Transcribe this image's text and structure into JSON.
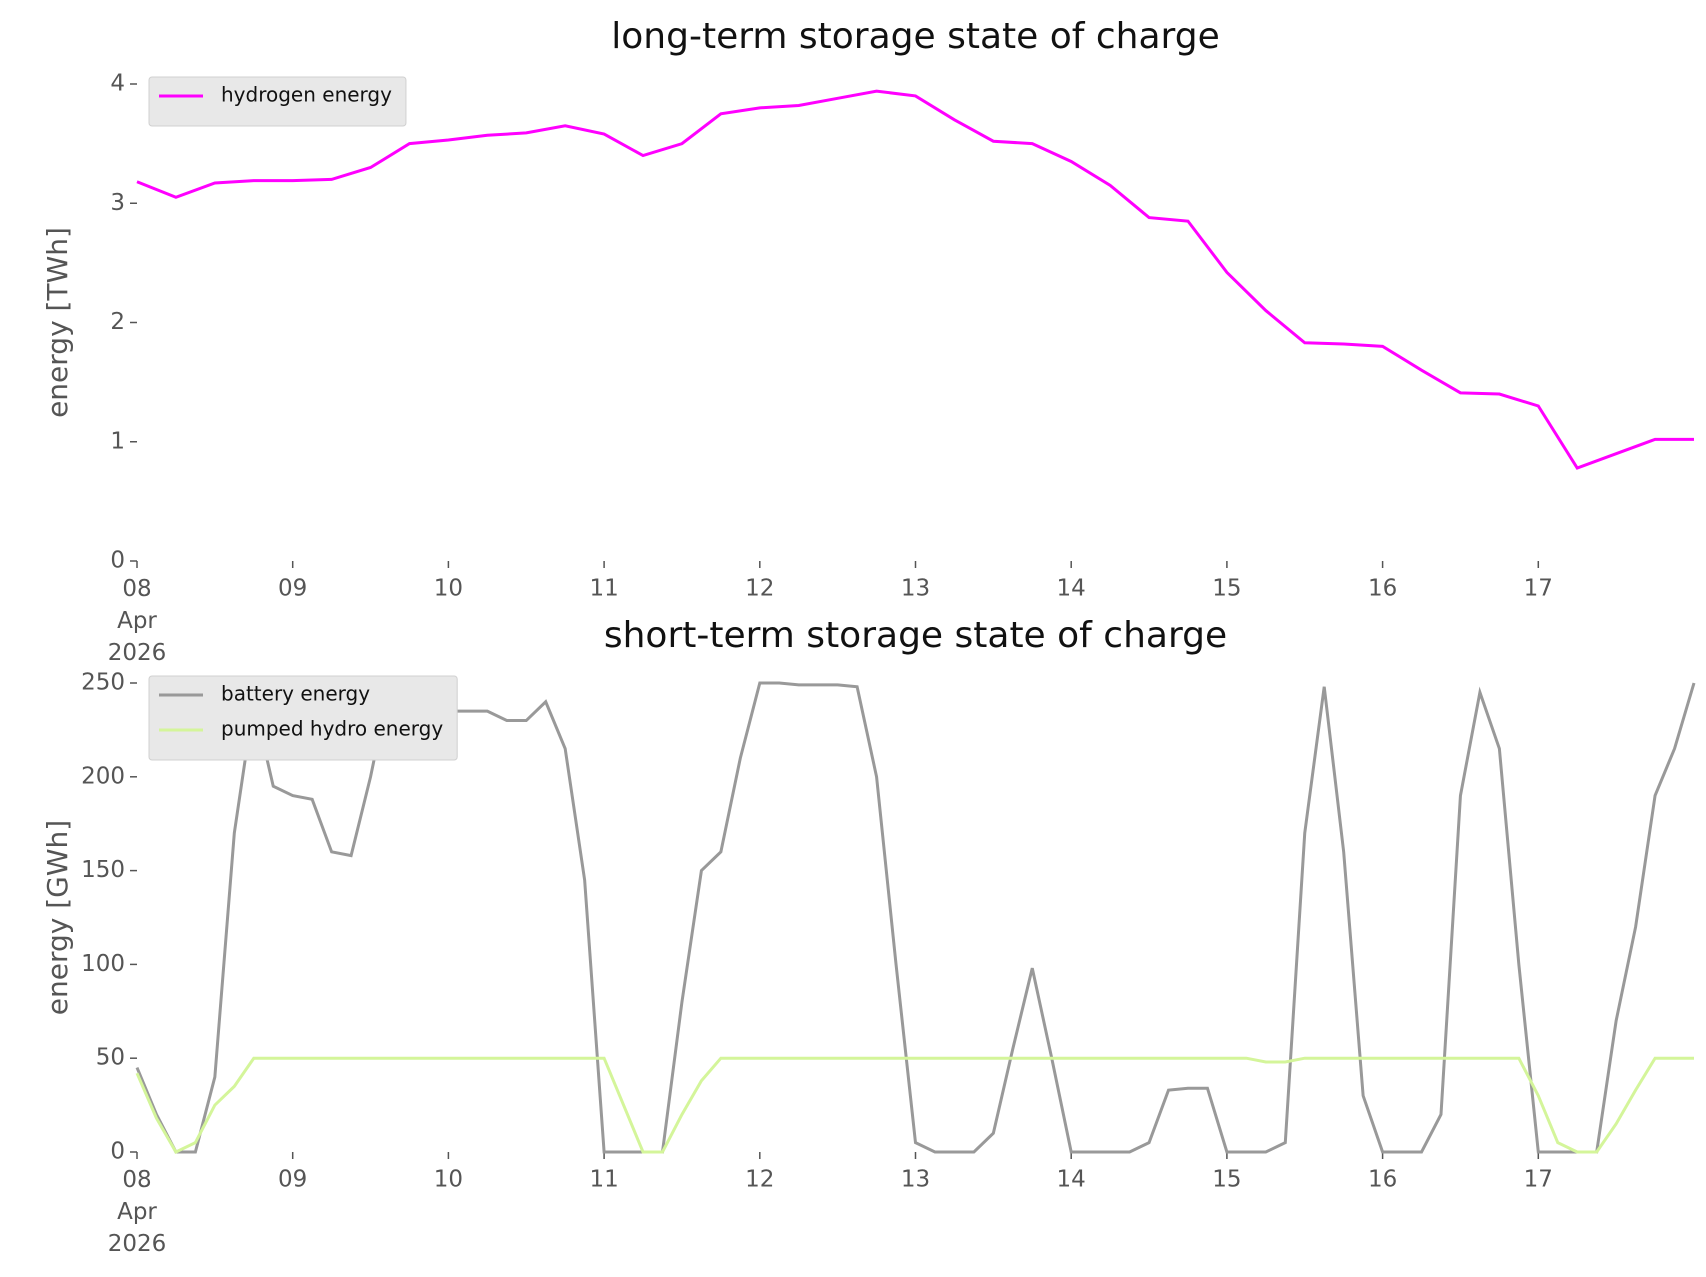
{
  "chart_data": [
    {
      "type": "line",
      "title": "long-term storage state of charge",
      "ylabel": "energy [TWh]",
      "legend": "upper left",
      "xlim": [
        "2026-04-08T00:00",
        "2026-04-18T00:00"
      ],
      "ylim": [
        0,
        4
      ],
      "yticks": [
        0,
        1,
        2,
        3,
        4
      ],
      "xticks": [
        {
          "value": "2026-04-08T00:00",
          "label": "08\nApr\n2026"
        },
        {
          "value": "2026-04-09T00:00",
          "label": "09"
        },
        {
          "value": "2026-04-10T00:00",
          "label": "10"
        },
        {
          "value": "2026-04-11T00:00",
          "label": "11"
        },
        {
          "value": "2026-04-12T00:00",
          "label": "12"
        },
        {
          "value": "2026-04-13T00:00",
          "label": "13"
        },
        {
          "value": "2026-04-14T00:00",
          "label": "14"
        },
        {
          "value": "2026-04-15T00:00",
          "label": "15"
        },
        {
          "value": "2026-04-16T00:00",
          "label": "16"
        },
        {
          "value": "2026-04-17T00:00",
          "label": "17"
        }
      ],
      "x": [
        "2026-04-08T00:00",
        "2026-04-08T06:00",
        "2026-04-08T12:00",
        "2026-04-08T18:00",
        "2026-04-09T00:00",
        "2026-04-09T06:00",
        "2026-04-09T12:00",
        "2026-04-09T18:00",
        "2026-04-10T00:00",
        "2026-04-10T06:00",
        "2026-04-10T12:00",
        "2026-04-10T18:00",
        "2026-04-11T00:00",
        "2026-04-11T06:00",
        "2026-04-11T12:00",
        "2026-04-11T18:00",
        "2026-04-12T00:00",
        "2026-04-12T06:00",
        "2026-04-12T12:00",
        "2026-04-12T18:00",
        "2026-04-13T00:00",
        "2026-04-13T06:00",
        "2026-04-13T12:00",
        "2026-04-13T18:00",
        "2026-04-14T00:00",
        "2026-04-14T06:00",
        "2026-04-14T12:00",
        "2026-04-14T18:00",
        "2026-04-15T00:00",
        "2026-04-15T06:00",
        "2026-04-15T12:00",
        "2026-04-15T18:00",
        "2026-04-16T00:00",
        "2026-04-16T06:00",
        "2026-04-16T12:00",
        "2026-04-16T18:00",
        "2026-04-17T00:00",
        "2026-04-17T06:00",
        "2026-04-17T12:00",
        "2026-04-17T18:00",
        "2026-04-18T00:00"
      ],
      "series": [
        {
          "name": "hydrogen energy",
          "color": "#ff00ff",
          "values": [
            3.18,
            3.05,
            3.17,
            3.19,
            3.19,
            3.2,
            3.3,
            3.5,
            3.53,
            3.57,
            3.59,
            3.65,
            3.58,
            3.4,
            3.5,
            3.75,
            3.8,
            3.82,
            3.88,
            3.94,
            3.9,
            3.7,
            3.52,
            3.5,
            3.35,
            3.15,
            2.88,
            2.85,
            2.42,
            2.1,
            1.83,
            1.82,
            1.8,
            1.6,
            1.41,
            1.4,
            1.3,
            0.78,
            0.9,
            1.02,
            1.02
          ]
        }
      ]
    },
    {
      "type": "line",
      "title": "short-term storage state of charge",
      "ylabel": "energy [GWh]",
      "legend": "upper left",
      "xlim": [
        "2026-04-08T00:00",
        "2026-04-18T00:00"
      ],
      "ylim": [
        0,
        250
      ],
      "yticks": [
        0,
        50,
        100,
        150,
        200,
        250
      ],
      "xticks": [
        {
          "value": "2026-04-08T00:00",
          "label": "08\nApr\n2026"
        },
        {
          "value": "2026-04-09T00:00",
          "label": "09"
        },
        {
          "value": "2026-04-10T00:00",
          "label": "10"
        },
        {
          "value": "2026-04-11T00:00",
          "label": "11"
        },
        {
          "value": "2026-04-12T00:00",
          "label": "12"
        },
        {
          "value": "2026-04-13T00:00",
          "label": "13"
        },
        {
          "value": "2026-04-14T00:00",
          "label": "14"
        },
        {
          "value": "2026-04-15T00:00",
          "label": "15"
        },
        {
          "value": "2026-04-16T00:00",
          "label": "16"
        },
        {
          "value": "2026-04-17T00:00",
          "label": "17"
        }
      ],
      "x": [
        "2026-04-08T00:00",
        "2026-04-08T03:00",
        "2026-04-08T06:00",
        "2026-04-08T09:00",
        "2026-04-08T12:00",
        "2026-04-08T15:00",
        "2026-04-08T18:00",
        "2026-04-08T21:00",
        "2026-04-09T00:00",
        "2026-04-09T03:00",
        "2026-04-09T06:00",
        "2026-04-09T09:00",
        "2026-04-09T12:00",
        "2026-04-09T15:00",
        "2026-04-09T18:00",
        "2026-04-09T21:00",
        "2026-04-10T00:00",
        "2026-04-10T03:00",
        "2026-04-10T06:00",
        "2026-04-10T09:00",
        "2026-04-10T12:00",
        "2026-04-10T15:00",
        "2026-04-10T18:00",
        "2026-04-10T21:00",
        "2026-04-11T00:00",
        "2026-04-11T03:00",
        "2026-04-11T06:00",
        "2026-04-11T09:00",
        "2026-04-11T12:00",
        "2026-04-11T15:00",
        "2026-04-11T18:00",
        "2026-04-11T21:00",
        "2026-04-12T00:00",
        "2026-04-12T03:00",
        "2026-04-12T06:00",
        "2026-04-12T09:00",
        "2026-04-12T12:00",
        "2026-04-12T15:00",
        "2026-04-12T18:00",
        "2026-04-12T21:00",
        "2026-04-13T00:00",
        "2026-04-13T03:00",
        "2026-04-13T06:00",
        "2026-04-13T09:00",
        "2026-04-13T12:00",
        "2026-04-13T15:00",
        "2026-04-13T18:00",
        "2026-04-13T21:00",
        "2026-04-14T00:00",
        "2026-04-14T03:00",
        "2026-04-14T06:00",
        "2026-04-14T09:00",
        "2026-04-14T12:00",
        "2026-04-14T15:00",
        "2026-04-14T18:00",
        "2026-04-14T21:00",
        "2026-04-15T00:00",
        "2026-04-15T03:00",
        "2026-04-15T06:00",
        "2026-04-15T09:00",
        "2026-04-15T12:00",
        "2026-04-15T15:00",
        "2026-04-15T18:00",
        "2026-04-15T21:00",
        "2026-04-16T00:00",
        "2026-04-16T03:00",
        "2026-04-16T06:00",
        "2026-04-16T09:00",
        "2026-04-16T12:00",
        "2026-04-16T15:00",
        "2026-04-16T18:00",
        "2026-04-16T21:00",
        "2026-04-17T00:00",
        "2026-04-17T03:00",
        "2026-04-17T06:00",
        "2026-04-17T09:00",
        "2026-04-17T12:00",
        "2026-04-17T15:00",
        "2026-04-17T18:00",
        "2026-04-17T21:00",
        "2026-04-18T00:00"
      ],
      "series": [
        {
          "name": "battery energy",
          "color": "#999999",
          "values": [
            45,
            20,
            0,
            0,
            40,
            170,
            240,
            195,
            190,
            188,
            160,
            158,
            200,
            250,
            240,
            230,
            235,
            235,
            235,
            230,
            230,
            240,
            215,
            145,
            0,
            0,
            0,
            0,
            80,
            150,
            160,
            210,
            250,
            250,
            249,
            249,
            249,
            248,
            200,
            100,
            5,
            0,
            0,
            0,
            10,
            55,
            98,
            50,
            0,
            0,
            0,
            0,
            5,
            33,
            34,
            34,
            0,
            0,
            0,
            5,
            170,
            248,
            160,
            30,
            0,
            0,
            0,
            20,
            190,
            245,
            215,
            100,
            0,
            0,
            0,
            0,
            70,
            120,
            190,
            215,
            250
          ]
        },
        {
          "name": "pumped hydro energy",
          "color": "#d4f59a",
          "values": [
            42,
            18,
            0,
            5,
            25,
            35,
            50,
            50,
            50,
            50,
            50,
            50,
            50,
            50,
            50,
            50,
            50,
            50,
            50,
            50,
            50,
            50,
            50,
            50,
            50,
            25,
            0,
            0,
            20,
            38,
            50,
            50,
            50,
            50,
            50,
            50,
            50,
            50,
            50,
            50,
            50,
            50,
            50,
            50,
            50,
            50,
            50,
            50,
            50,
            50,
            50,
            50,
            50,
            50,
            50,
            50,
            50,
            50,
            48,
            48,
            50,
            50,
            50,
            50,
            50,
            50,
            50,
            50,
            50,
            50,
            50,
            50,
            30,
            5,
            0,
            0,
            15,
            33,
            50,
            50,
            50
          ]
        }
      ]
    }
  ]
}
